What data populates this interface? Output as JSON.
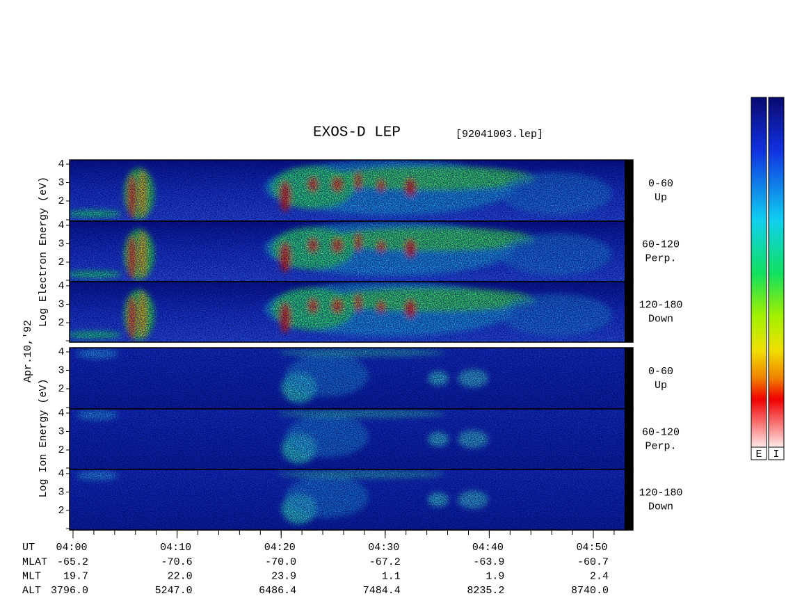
{
  "header": {
    "title": "EXOS-D LEP",
    "file": "[92041003.lep]"
  },
  "axis_labels": {
    "electron": "Log Electron Energy (eV)",
    "date": "Apr.10,'92",
    "ion": "Log Ion Energy (eV)"
  },
  "panels": [
    {
      "species": "electron",
      "ticks": [
        "4",
        "3",
        "2"
      ],
      "pitch": "0-60",
      "direction": "Up"
    },
    {
      "species": "electron",
      "ticks": [
        "4",
        "3",
        "2"
      ],
      "pitch": "60-120",
      "direction": "Perp."
    },
    {
      "species": "electron",
      "ticks": [
        "4",
        "3",
        "2"
      ],
      "pitch": "120-180",
      "direction": "Down"
    },
    {
      "species": "ion",
      "ticks": [
        "4",
        "3",
        "2"
      ],
      "pitch": "0-60",
      "direction": "Up"
    },
    {
      "species": "ion",
      "ticks": [
        "4",
        "3",
        "2"
      ],
      "pitch": "60-120",
      "direction": "Perp."
    },
    {
      "species": "ion",
      "ticks": [
        "4",
        "3",
        "2"
      ],
      "pitch": "120-180",
      "direction": "Down"
    }
  ],
  "time_axis": {
    "label": "UT",
    "ticks": [
      "04:00",
      "04:10",
      "04:20",
      "04:30",
      "04:40",
      "04:50"
    ]
  },
  "rows": [
    {
      "name": "MLAT",
      "values": [
        "-65.2",
        "-70.6",
        "-70.0",
        "-67.2",
        "-63.9",
        "-60.7"
      ]
    },
    {
      "name": "MLT",
      "values": [
        "19.7",
        "22.0",
        "23.9",
        "1.1",
        "1.9",
        "2.4"
      ]
    },
    {
      "name": "ALT",
      "values": [
        "3796.0",
        "5247.0",
        "6486.4",
        "7484.4",
        "8235.2",
        "8740.0"
      ]
    }
  ],
  "colorbars": [
    "E",
    "I"
  ]
}
